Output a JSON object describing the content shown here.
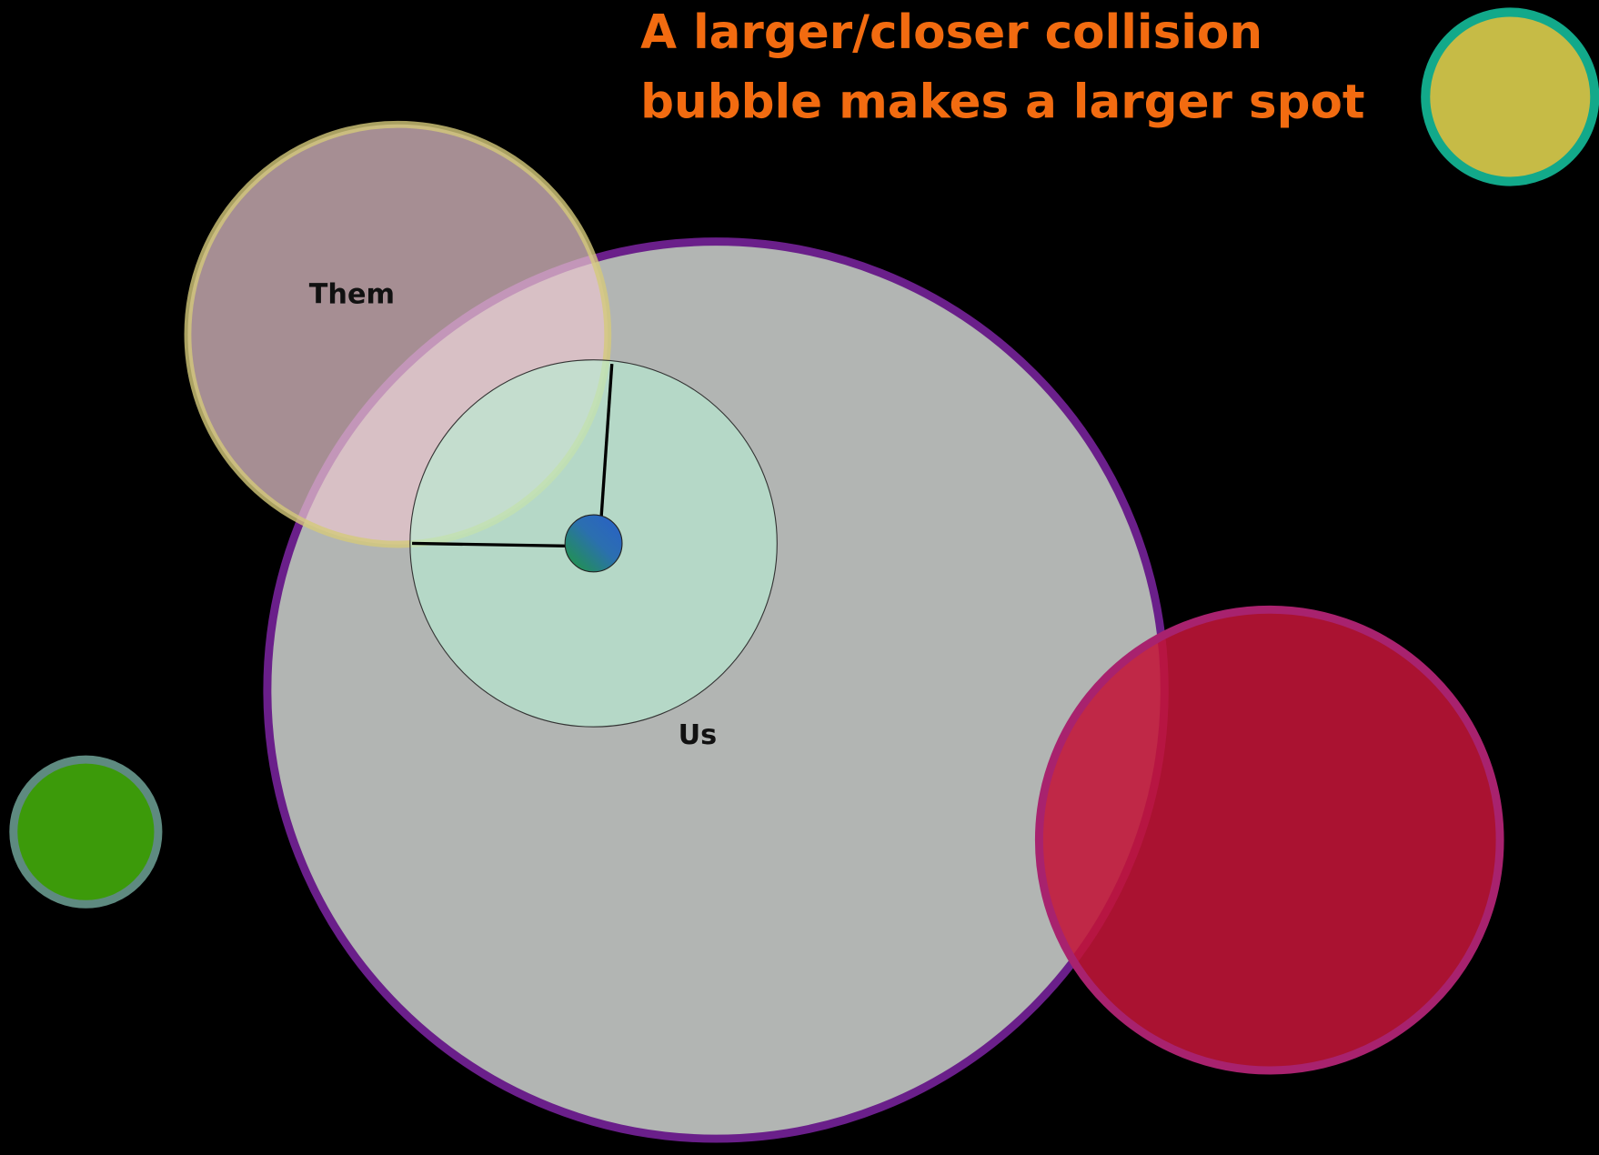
{
  "title": {
    "lines": [
      "A larger/closer collision",
      "bubble makes a larger spot"
    ]
  },
  "labels": {
    "them": "Them",
    "us": "Us"
  }
}
